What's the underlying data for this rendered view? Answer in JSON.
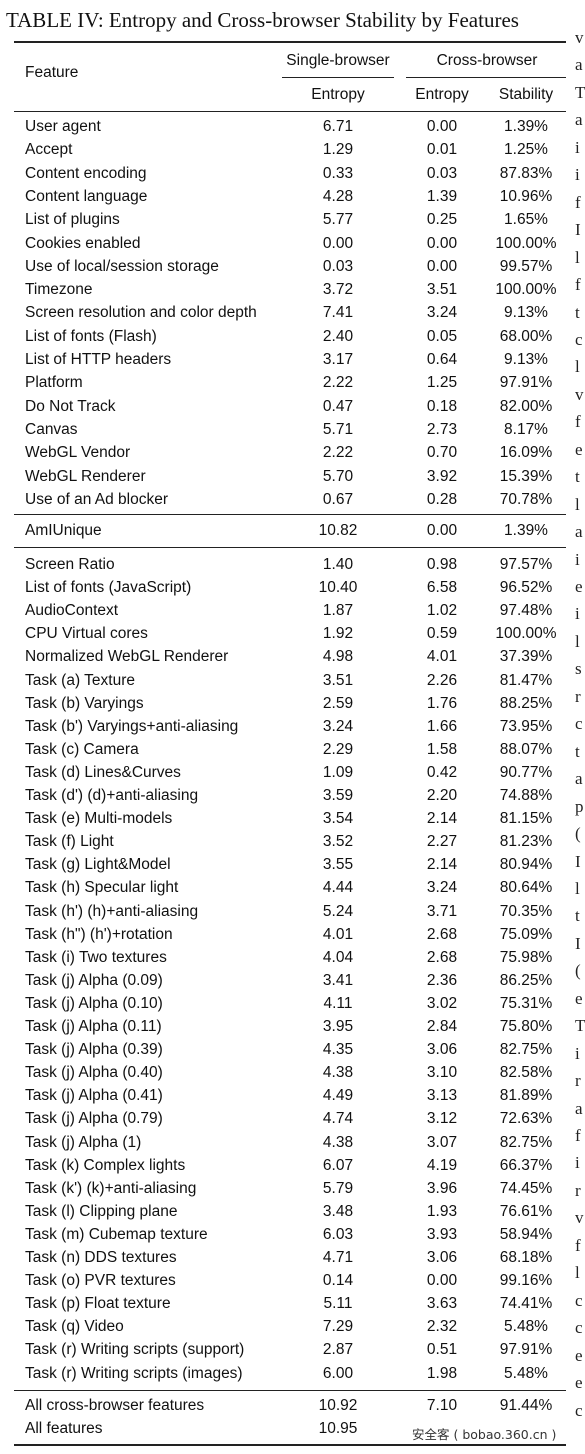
{
  "caption": "TABLE IV: Entropy and Cross-browser Stability by Features",
  "headers": {
    "feature": "Feature",
    "single_browser": "Single-browser",
    "cross_browser": "Cross-browser",
    "entropy_single": "Entropy",
    "entropy_cross": "Entropy",
    "stability": "Stability"
  },
  "sections": [
    [
      [
        "User agent",
        "6.71",
        "0.00",
        "1.39%"
      ],
      [
        "Accept",
        "1.29",
        "0.01",
        "1.25%"
      ],
      [
        "Content encoding",
        "0.33",
        "0.03",
        "87.83%"
      ],
      [
        "Content language",
        "4.28",
        "1.39",
        "10.96%"
      ],
      [
        "List of plugins",
        "5.77",
        "0.25",
        "1.65%"
      ],
      [
        "Cookies enabled",
        "0.00",
        "0.00",
        "100.00%"
      ],
      [
        "Use of local/session storage",
        "0.03",
        "0.00",
        "99.57%"
      ],
      [
        "Timezone",
        "3.72",
        "3.51",
        "100.00%"
      ],
      [
        "Screen resolution and color depth",
        "7.41",
        "3.24",
        "9.13%"
      ],
      [
        "List of fonts (Flash)",
        "2.40",
        "0.05",
        "68.00%"
      ],
      [
        "List of HTTP headers",
        "3.17",
        "0.64",
        "9.13%"
      ],
      [
        "Platform",
        "2.22",
        "1.25",
        "97.91%"
      ],
      [
        "Do Not Track",
        "0.47",
        "0.18",
        "82.00%"
      ],
      [
        "Canvas",
        "5.71",
        "2.73",
        "8.17%"
      ],
      [
        "WebGL Vendor",
        "2.22",
        "0.70",
        "16.09%"
      ],
      [
        "WebGL Renderer",
        "5.70",
        "3.92",
        "15.39%"
      ],
      [
        "Use of an Ad blocker",
        "0.67",
        "0.28",
        "70.78%"
      ]
    ],
    [
      [
        "AmIUnique",
        "10.82",
        "0.00",
        "1.39%"
      ]
    ],
    [
      [
        "Screen Ratio",
        "1.40",
        "0.98",
        "97.57%"
      ],
      [
        "List of fonts (JavaScript)",
        "10.40",
        "6.58",
        "96.52%"
      ],
      [
        "AudioContext",
        "1.87",
        "1.02",
        "97.48%"
      ],
      [
        "CPU Virtual cores",
        "1.92",
        "0.59",
        "100.00%"
      ],
      [
        "Normalized WebGL Renderer",
        "4.98",
        "4.01",
        "37.39%"
      ],
      [
        "Task (a) Texture",
        "3.51",
        "2.26",
        "81.47%"
      ],
      [
        "Task (b) Varyings",
        "2.59",
        "1.76",
        "88.25%"
      ],
      [
        "Task (b') Varyings+anti-aliasing",
        "3.24",
        "1.66",
        "73.95%"
      ],
      [
        "Task (c) Camera",
        "2.29",
        "1.58",
        "88.07%"
      ],
      [
        "Task (d) Lines&Curves",
        "1.09",
        "0.42",
        "90.77%"
      ],
      [
        "Task (d') (d)+anti-aliasing",
        "3.59",
        "2.20",
        "74.88%"
      ],
      [
        "Task (e) Multi-models",
        "3.54",
        "2.14",
        "81.15%"
      ],
      [
        "Task (f) Light",
        "3.52",
        "2.27",
        "81.23%"
      ],
      [
        "Task (g) Light&Model",
        "3.55",
        "2.14",
        "80.94%"
      ],
      [
        "Task (h) Specular light",
        "4.44",
        "3.24",
        "80.64%"
      ],
      [
        "Task (h') (h)+anti-aliasing",
        "5.24",
        "3.71",
        "70.35%"
      ],
      [
        "Task (h\") (h')+rotation",
        "4.01",
        "2.68",
        "75.09%"
      ],
      [
        "Task (i) Two textures",
        "4.04",
        "2.68",
        "75.98%"
      ],
      [
        "Task (j) Alpha (0.09)",
        "3.41",
        "2.36",
        "86.25%"
      ],
      [
        "Task (j) Alpha (0.10)",
        "4.11",
        "3.02",
        "75.31%"
      ],
      [
        "Task (j) Alpha (0.11)",
        "3.95",
        "2.84",
        "75.80%"
      ],
      [
        "Task (j) Alpha (0.39)",
        "4.35",
        "3.06",
        "82.75%"
      ],
      [
        "Task (j) Alpha (0.40)",
        "4.38",
        "3.10",
        "82.58%"
      ],
      [
        "Task (j) Alpha (0.41)",
        "4.49",
        "3.13",
        "81.89%"
      ],
      [
        "Task (j) Alpha (0.79)",
        "4.74",
        "3.12",
        "72.63%"
      ],
      [
        "Task (j) Alpha (1)",
        "4.38",
        "3.07",
        "82.75%"
      ],
      [
        "Task (k) Complex lights",
        "6.07",
        "4.19",
        "66.37%"
      ],
      [
        "Task (k') (k)+anti-aliasing",
        "5.79",
        "3.96",
        "74.45%"
      ],
      [
        "Task (l) Clipping plane",
        "3.48",
        "1.93",
        "76.61%"
      ],
      [
        "Task (m) Cubemap texture",
        "6.03",
        "3.93",
        "58.94%"
      ],
      [
        "Task (n) DDS textures",
        "4.71",
        "3.06",
        "68.18%"
      ],
      [
        "Task (o) PVR textures",
        "0.14",
        "0.00",
        "99.16%"
      ],
      [
        "Task (p) Float texture",
        "5.11",
        "3.63",
        "74.41%"
      ],
      [
        "Task (q) Video",
        "7.29",
        "2.32",
        "5.48%"
      ],
      [
        "Task (r) Writing scripts (support)",
        "2.87",
        "0.51",
        "97.91%"
      ],
      [
        "Task (r) Writing scripts (images)",
        "6.00",
        "1.98",
        "5.48%"
      ]
    ],
    [
      [
        "All cross-browser features",
        "10.92",
        "7.10",
        "91.44%"
      ],
      [
        "All features",
        "10.95",
        "",
        ""
      ]
    ]
  ],
  "margin_text": [
    "v",
    "a",
    "T",
    "a",
    "i",
    "i",
    "f",
    "I",
    "l",
    "f",
    "t",
    "c",
    "l",
    "v",
    "f",
    "e",
    "t",
    "l",
    "a",
    "i",
    "e",
    "i",
    "l",
    "s",
    "r",
    "c",
    "t",
    "a",
    "p",
    "(",
    "I",
    "l",
    "t",
    "I",
    "(",
    "e",
    "T",
    "i",
    "r",
    "a",
    "f",
    "i",
    "r",
    "v",
    "f",
    "l",
    "c",
    "c",
    "e",
    "e",
    "c"
  ],
  "watermark": "安全客 ( bobao.360.cn )"
}
